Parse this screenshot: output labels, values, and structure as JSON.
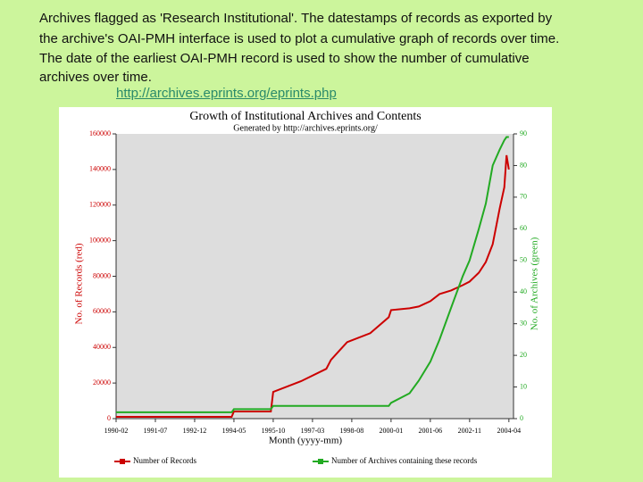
{
  "text_lines": [
    "Archives flagged as 'Research Institutional'. The datestamps of records as exported by",
    "the archive's OAI-PMH interface is used to plot a cumulative graph of records over time.",
    "The date of the earliest OAI-PMH record is used to show the number of cumulative",
    "archives over time."
  ],
  "link": "http://archives.eprints.org/eprints.php",
  "chart_data": {
    "type": "line",
    "title": "Growth of Institutional Archives and Contents",
    "subtitle": "Generated by http://archives.eprints.org/",
    "xlabel": "Month (yyyy-mm)",
    "ylabel": "No. of Records (red)",
    "y2label": "No. of Archives (green)",
    "x": [
      "1990-02",
      "1994-04",
      "1994-05",
      "1995-09",
      "1995-10",
      "1996-10",
      "1997-09",
      "1997-11",
      "1998-06",
      "1999-04",
      "1999-12",
      "2000-01",
      "2000-09",
      "2001-01",
      "2001-06",
      "2001-10",
      "2002-03",
      "2002-08",
      "2002-11",
      "2003-03",
      "2003-06",
      "2003-09",
      "2003-12",
      "2004-02",
      "2004-03",
      "2004-04"
    ],
    "series": [
      {
        "name": "Number of Records",
        "color": "#cc0000",
        "values": [
          1000,
          1000,
          4000,
          4000,
          15000,
          21000,
          28000,
          33000,
          43000,
          48000,
          57000,
          61000,
          62000,
          63000,
          66000,
          70000,
          72000,
          75000,
          77000,
          82000,
          88000,
          98000,
          118000,
          130000,
          148000,
          140000
        ]
      },
      {
        "name": "Number of Archives containing these records",
        "color": "#22aa22",
        "axis": "y2",
        "values": [
          2,
          2,
          3,
          3,
          4,
          4,
          4,
          4,
          4,
          4,
          4,
          5,
          8,
          12,
          18,
          25,
          35,
          45,
          50,
          60,
          68,
          80,
          85,
          88,
          89,
          89
        ]
      }
    ],
    "xlim": [
      "1990-02",
      "2004-06"
    ],
    "xticks": [
      "1990-02",
      "1991-07",
      "1992-12",
      "1994-05",
      "1995-10",
      "1997-03",
      "1998-08",
      "2000-01",
      "2001-06",
      "2002-11",
      "2004-04"
    ],
    "ylim": [
      0,
      160000
    ],
    "yticks": [
      0,
      20000,
      40000,
      60000,
      80000,
      100000,
      120000,
      140000,
      160000
    ],
    "y2lim": [
      0,
      90
    ],
    "y2ticks": [
      0,
      10,
      20,
      30,
      40,
      50,
      60,
      70,
      80,
      90
    ],
    "legend": "bottom"
  }
}
